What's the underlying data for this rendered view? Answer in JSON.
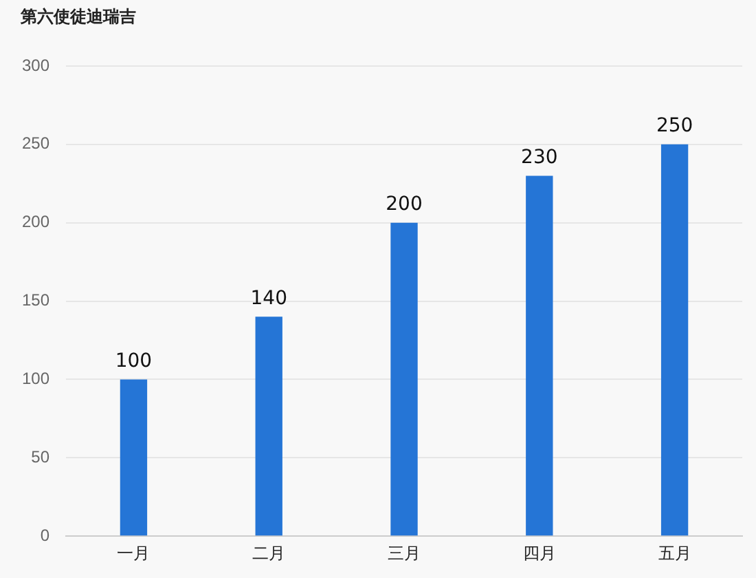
{
  "chart_data": {
    "type": "bar",
    "title": "第六使徒迪瑞吉",
    "categories": [
      "一月",
      "二月",
      "三月",
      "四月",
      "五月"
    ],
    "values": [
      100,
      140,
      200,
      230,
      250
    ],
    "color": "#2575d6",
    "ylim": [
      0,
      300
    ],
    "yticks": [
      0,
      50,
      100,
      150,
      200,
      250,
      300
    ],
    "grid": "y",
    "data_labels": true
  }
}
